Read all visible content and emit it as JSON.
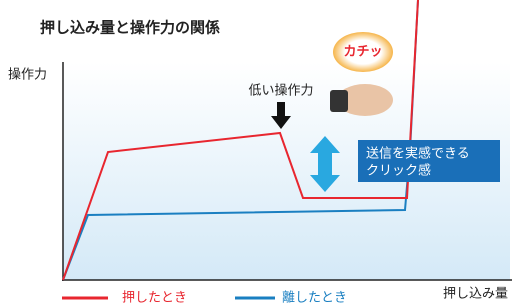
{
  "title": "押し込み量と操作力の関係",
  "y_axis_label": "操作力",
  "x_axis_label": "押し込み量",
  "annotation": "低い操作力",
  "click_sound": "カチッ",
  "callout": [
    "送信を実感できる",
    "クリック感"
  ],
  "legend": [
    "押したとき",
    "離したとき"
  ]
}
